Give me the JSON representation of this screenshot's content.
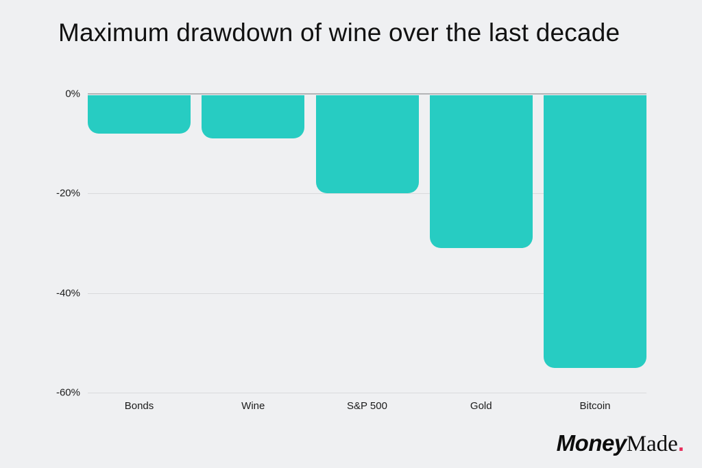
{
  "chart_data": {
    "type": "bar",
    "title": "Maximum drawdown of wine over the last decade",
    "categories": [
      "Bonds",
      "Wine",
      "S&P 500",
      "Gold",
      "Bitcoin"
    ],
    "values": [
      -8,
      -9,
      -20,
      -31,
      -55
    ],
    "value_unit": "%",
    "xlabel": "",
    "ylabel": "",
    "ylim": [
      -60,
      0
    ],
    "yticks": [
      "0%",
      "-20%",
      "-40%",
      "-60%"
    ],
    "grid": true,
    "legend": false,
    "bar_corner": "rounded-bottom"
  },
  "footer": {
    "logo_bold": "Money",
    "logo_serif": "Made",
    "logo_dot": "."
  },
  "colors": {
    "background": "#eff0f2",
    "bar": "#27ccc2",
    "zero_line": "#b3b4b6",
    "gridline": "#d9dadc",
    "text": "#1a1a1a",
    "logo_text": "#0d0d0d",
    "logo_dot": "#e62e5c"
  }
}
